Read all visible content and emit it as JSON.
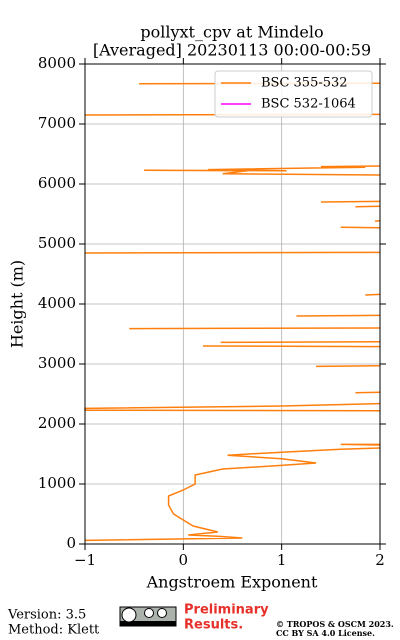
{
  "chart_data": {
    "type": "line",
    "title": "pollyxt_cpv at Mindelo",
    "subtitle": "[Averaged] 20230113 00:00-00:59",
    "x_label": "Angstroem Exponent",
    "y_label": "Height (m)",
    "xlim": [
      -1,
      2
    ],
    "ylim": [
      0,
      8000
    ],
    "xticks": [
      {
        "value": -1,
        "label": "−1"
      },
      0,
      1,
      2
    ],
    "yticks": [
      0,
      1000,
      2000,
      3000,
      4000,
      5000,
      6000,
      7000,
      8000
    ],
    "grid": true,
    "legend": "upper right",
    "y": [
      60,
      100,
      130,
      150,
      200,
      300,
      400,
      500,
      650,
      800,
      900,
      1000,
      1150,
      1250,
      1300,
      1350,
      1420,
      1480,
      1530,
      1580,
      1600,
      null,
      1650,
      1660,
      1660,
      null,
      2220,
      2230,
      2260,
      2300,
      2340,
      null,
      2520,
      2530,
      null,
      2960,
      2970,
      null,
      3300,
      3290,
      null,
      3360,
      3370,
      null,
      3590,
      3600,
      null,
      3800,
      3810,
      null,
      4150,
      4160,
      null,
      4850,
      4860,
      null,
      5280,
      5270,
      null,
      5380,
      5390,
      null,
      5620,
      5630,
      null,
      5700,
      5710,
      null,
      6150,
      6170,
      6220,
      6230,
      6220,
      6240,
      6280,
      6290,
      6300,
      null,
      7150,
      7160,
      null,
      7670,
      7680
    ],
    "series": [
      {
        "name": "BSC 355-532",
        "color": "#ff7f0e",
        "values": [
          -1,
          0.6,
          0.35,
          0.05,
          0.35,
          0.1,
          0.0,
          -0.1,
          -0.15,
          -0.15,
          0.0,
          0.12,
          0.12,
          0.4,
          0.9,
          1.35,
          1.0,
          0.45,
          1.0,
          1.6,
          2.0,
          null,
          2.0,
          1.6,
          2.0,
          null,
          2.0,
          -1,
          -1,
          1.0,
          2.0,
          null,
          1.75,
          2.0,
          null,
          1.35,
          2.0,
          null,
          0.2,
          2.0,
          null,
          0.38,
          2.0,
          null,
          -0.55,
          2.0,
          null,
          1.15,
          2.0,
          null,
          1.85,
          2.0,
          null,
          -1,
          2.0,
          null,
          1.6,
          2.0,
          null,
          1.95,
          2.0,
          null,
          1.75,
          2.0,
          null,
          1.4,
          2.0,
          null,
          2.0,
          0.4,
          0.65,
          -0.4,
          1.05,
          0.25,
          1.85,
          1.4,
          2.0,
          null,
          -1,
          2.0,
          null,
          -0.45,
          2.0
        ]
      },
      {
        "name": "BSC 532-1064",
        "color": "#ff00ff",
        "values": [
          null,
          null,
          null,
          null,
          null,
          null,
          null,
          null,
          null,
          null,
          null,
          null,
          null,
          null,
          null,
          null,
          null,
          null,
          null,
          null,
          null,
          null,
          null,
          null,
          null,
          null,
          null,
          null,
          null,
          null,
          null,
          null,
          null,
          null,
          null,
          null,
          null,
          null,
          null,
          null,
          null,
          null,
          null,
          null,
          null,
          null,
          null,
          null,
          null,
          null,
          null,
          null,
          null,
          null,
          null,
          null,
          null,
          null,
          null,
          null,
          null,
          null,
          null,
          null,
          null,
          null,
          null,
          null,
          null,
          null,
          null,
          null,
          null,
          null,
          null,
          null,
          null,
          null,
          null,
          null,
          null,
          null,
          null,
          null,
          null,
          null,
          null
        ]
      }
    ]
  },
  "footer": {
    "version": "Version: 3.5",
    "method": "Method: Klett",
    "preliminary": [
      "Preliminary",
      "Results."
    ],
    "copyright": [
      "© TROPOS & OSCM 2023.",
      "CC BY SA 4.0 License."
    ]
  }
}
